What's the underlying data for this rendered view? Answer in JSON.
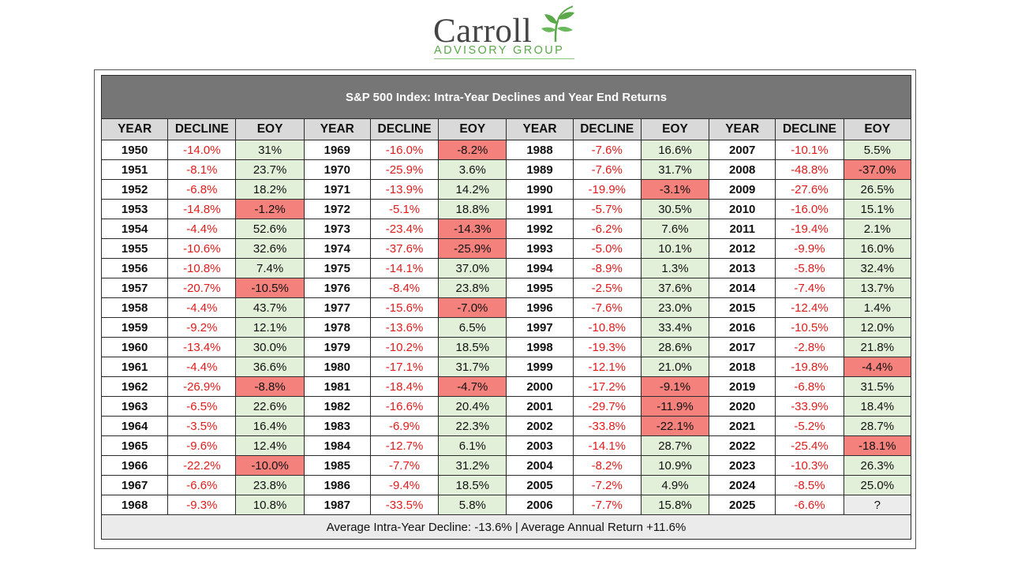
{
  "logo": {
    "name": "Carroll",
    "subtitle": "ADVISORY GROUP",
    "accent_color": "#5aa84a",
    "icon": "sprout-icon"
  },
  "table": {
    "title": "S&P 500 Index: Intra-Year Declines and Year End Returns",
    "headers": [
      "YEAR",
      "DECLINE",
      "EOY"
    ],
    "colors": {
      "decline_text": "#e01b1b",
      "positive_fill": "#e2f0d9",
      "negative_fill": "#f4817b",
      "title_fill": "#767676",
      "header_fill": "#d9d9d9"
    },
    "columns": [
      [
        {
          "year": "1950",
          "decline": "-14.0%",
          "eoy": "31%",
          "sign": "pos"
        },
        {
          "year": "1951",
          "decline": "-8.1%",
          "eoy": "23.7%",
          "sign": "pos"
        },
        {
          "year": "1952",
          "decline": "-6.8%",
          "eoy": "18.2%",
          "sign": "pos"
        },
        {
          "year": "1953",
          "decline": "-14.8%",
          "eoy": "-1.2%",
          "sign": "neg"
        },
        {
          "year": "1954",
          "decline": "-4.4%",
          "eoy": "52.6%",
          "sign": "pos"
        },
        {
          "year": "1955",
          "decline": "-10.6%",
          "eoy": "32.6%",
          "sign": "pos"
        },
        {
          "year": "1956",
          "decline": "-10.8%",
          "eoy": "7.4%",
          "sign": "pos"
        },
        {
          "year": "1957",
          "decline": "-20.7%",
          "eoy": "-10.5%",
          "sign": "neg"
        },
        {
          "year": "1958",
          "decline": "-4.4%",
          "eoy": "43.7%",
          "sign": "pos"
        },
        {
          "year": "1959",
          "decline": "-9.2%",
          "eoy": "12.1%",
          "sign": "pos"
        },
        {
          "year": "1960",
          "decline": "-13.4%",
          "eoy": "30.0%",
          "sign": "pos"
        },
        {
          "year": "1961",
          "decline": "-4.4%",
          "eoy": "36.6%",
          "sign": "pos"
        },
        {
          "year": "1962",
          "decline": "-26.9%",
          "eoy": "-8.8%",
          "sign": "neg"
        },
        {
          "year": "1963",
          "decline": "-6.5%",
          "eoy": "22.6%",
          "sign": "pos"
        },
        {
          "year": "1964",
          "decline": "-3.5%",
          "eoy": "16.4%",
          "sign": "pos"
        },
        {
          "year": "1965",
          "decline": "-9.6%",
          "eoy": "12.4%",
          "sign": "pos"
        },
        {
          "year": "1966",
          "decline": "-22.2%",
          "eoy": "-10.0%",
          "sign": "neg"
        },
        {
          "year": "1967",
          "decline": "-6.6%",
          "eoy": "23.8%",
          "sign": "pos"
        },
        {
          "year": "1968",
          "decline": "-9.3%",
          "eoy": "10.8%",
          "sign": "pos"
        }
      ],
      [
        {
          "year": "1969",
          "decline": "-16.0%",
          "eoy": "-8.2%",
          "sign": "neg"
        },
        {
          "year": "1970",
          "decline": "-25.9%",
          "eoy": "3.6%",
          "sign": "pos"
        },
        {
          "year": "1971",
          "decline": "-13.9%",
          "eoy": "14.2%",
          "sign": "pos"
        },
        {
          "year": "1972",
          "decline": "-5.1%",
          "eoy": "18.8%",
          "sign": "pos"
        },
        {
          "year": "1973",
          "decline": "-23.4%",
          "eoy": "-14.3%",
          "sign": "neg"
        },
        {
          "year": "1974",
          "decline": "-37.6%",
          "eoy": "-25.9%",
          "sign": "neg"
        },
        {
          "year": "1975",
          "decline": "-14.1%",
          "eoy": "37.0%",
          "sign": "pos"
        },
        {
          "year": "1976",
          "decline": "-8.4%",
          "eoy": "23.8%",
          "sign": "pos"
        },
        {
          "year": "1977",
          "decline": "-15.6%",
          "eoy": "-7.0%",
          "sign": "neg"
        },
        {
          "year": "1978",
          "decline": "-13.6%",
          "eoy": "6.5%",
          "sign": "pos"
        },
        {
          "year": "1979",
          "decline": "-10.2%",
          "eoy": "18.5%",
          "sign": "pos"
        },
        {
          "year": "1980",
          "decline": "-17.1%",
          "eoy": "31.7%",
          "sign": "pos"
        },
        {
          "year": "1981",
          "decline": "-18.4%",
          "eoy": "-4.7%",
          "sign": "neg"
        },
        {
          "year": "1982",
          "decline": "-16.6%",
          "eoy": "20.4%",
          "sign": "pos"
        },
        {
          "year": "1983",
          "decline": "-6.9%",
          "eoy": "22.3%",
          "sign": "pos"
        },
        {
          "year": "1984",
          "decline": "-12.7%",
          "eoy": "6.1%",
          "sign": "pos"
        },
        {
          "year": "1985",
          "decline": "-7.7%",
          "eoy": "31.2%",
          "sign": "pos"
        },
        {
          "year": "1986",
          "decline": "-9.4%",
          "eoy": "18.5%",
          "sign": "pos"
        },
        {
          "year": "1987",
          "decline": "-33.5%",
          "eoy": "5.8%",
          "sign": "pos"
        }
      ],
      [
        {
          "year": "1988",
          "decline": "-7.6%",
          "eoy": "16.6%",
          "sign": "pos"
        },
        {
          "year": "1989",
          "decline": "-7.6%",
          "eoy": "31.7%",
          "sign": "pos"
        },
        {
          "year": "1990",
          "decline": "-19.9%",
          "eoy": "-3.1%",
          "sign": "neg"
        },
        {
          "year": "1991",
          "decline": "-5.7%",
          "eoy": "30.5%",
          "sign": "pos"
        },
        {
          "year": "1992",
          "decline": "-6.2%",
          "eoy": "7.6%",
          "sign": "pos"
        },
        {
          "year": "1993",
          "decline": "-5.0%",
          "eoy": "10.1%",
          "sign": "pos"
        },
        {
          "year": "1994",
          "decline": "-8.9%",
          "eoy": "1.3%",
          "sign": "pos"
        },
        {
          "year": "1995",
          "decline": "-2.5%",
          "eoy": "37.6%",
          "sign": "pos"
        },
        {
          "year": "1996",
          "decline": "-7.6%",
          "eoy": "23.0%",
          "sign": "pos"
        },
        {
          "year": "1997",
          "decline": "-10.8%",
          "eoy": "33.4%",
          "sign": "pos"
        },
        {
          "year": "1998",
          "decline": "-19.3%",
          "eoy": "28.6%",
          "sign": "pos"
        },
        {
          "year": "1999",
          "decline": "-12.1%",
          "eoy": "21.0%",
          "sign": "pos"
        },
        {
          "year": "2000",
          "decline": "-17.2%",
          "eoy": "-9.1%",
          "sign": "neg"
        },
        {
          "year": "2001",
          "decline": "-29.7%",
          "eoy": "-11.9%",
          "sign": "neg"
        },
        {
          "year": "2002",
          "decline": "-33.8%",
          "eoy": "-22.1%",
          "sign": "neg"
        },
        {
          "year": "2003",
          "decline": "-14.1%",
          "eoy": "28.7%",
          "sign": "pos"
        },
        {
          "year": "2004",
          "decline": "-8.2%",
          "eoy": "10.9%",
          "sign": "pos"
        },
        {
          "year": "2005",
          "decline": "-7.2%",
          "eoy": "4.9%",
          "sign": "pos"
        },
        {
          "year": "2006",
          "decline": "-7.7%",
          "eoy": "15.8%",
          "sign": "pos"
        }
      ],
      [
        {
          "year": "2007",
          "decline": "-10.1%",
          "eoy": "5.5%",
          "sign": "pos"
        },
        {
          "year": "2008",
          "decline": "-48.8%",
          "eoy": "-37.0%",
          "sign": "neg"
        },
        {
          "year": "2009",
          "decline": "-27.6%",
          "eoy": "26.5%",
          "sign": "pos"
        },
        {
          "year": "2010",
          "decline": "-16.0%",
          "eoy": "15.1%",
          "sign": "pos"
        },
        {
          "year": "2011",
          "decline": "-19.4%",
          "eoy": "2.1%",
          "sign": "pos"
        },
        {
          "year": "2012",
          "decline": "-9.9%",
          "eoy": "16.0%",
          "sign": "pos"
        },
        {
          "year": "2013",
          "decline": "-5.8%",
          "eoy": "32.4%",
          "sign": "pos"
        },
        {
          "year": "2014",
          "decline": "-7.4%",
          "eoy": "13.7%",
          "sign": "pos"
        },
        {
          "year": "2015",
          "decline": "-12.4%",
          "eoy": "1.4%",
          "sign": "pos"
        },
        {
          "year": "2016",
          "decline": "-10.5%",
          "eoy": "12.0%",
          "sign": "pos"
        },
        {
          "year": "2017",
          "decline": "-2.8%",
          "eoy": "21.8%",
          "sign": "pos"
        },
        {
          "year": "2018",
          "decline": "-19.8%",
          "eoy": "-4.4%",
          "sign": "neg"
        },
        {
          "year": "2019",
          "decline": "-6.8%",
          "eoy": "31.5%",
          "sign": "pos"
        },
        {
          "year": "2020",
          "decline": "-33.9%",
          "eoy": "18.4%",
          "sign": "pos"
        },
        {
          "year": "2021",
          "decline": "-5.2%",
          "eoy": "28.7%",
          "sign": "pos"
        },
        {
          "year": "2022",
          "decline": "-25.4%",
          "eoy": "-18.1%",
          "sign": "neg"
        },
        {
          "year": "2023",
          "decline": "-10.3%",
          "eoy": "26.3%",
          "sign": "pos"
        },
        {
          "year": "2024",
          "decline": "-8.5%",
          "eoy": "25.0%",
          "sign": "pos"
        },
        {
          "year": "2025",
          "decline": "-6.6%",
          "eoy": "?",
          "sign": "unk"
        }
      ]
    ],
    "footer": "Average Intra-Year Decline: -13.6% | Average Annual Return +11.6%"
  }
}
